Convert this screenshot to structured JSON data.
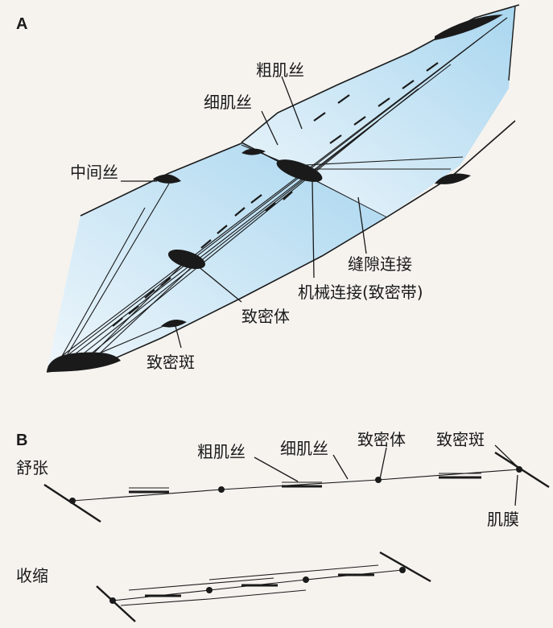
{
  "panel_a": {
    "letter": "A",
    "labels": {
      "thick_filament": "粗肌丝",
      "thin_filament": "细肌丝",
      "intermediate_filament": "中间丝",
      "gap_junction": "缝隙连接",
      "mechanical_junction": "机械连接(致密带)",
      "dense_body": "致密体",
      "dense_patch": "致密斑"
    }
  },
  "panel_b": {
    "letter": "B",
    "relaxed_label": "舒张",
    "contracted_label": "收缩",
    "labels": {
      "thick_filament": "粗肌丝",
      "thin_filament": "细肌丝",
      "dense_body": "致密体",
      "dense_patch": "致密斑",
      "sarcolemma": "肌膜"
    }
  },
  "colors": {
    "cell_fill": "#bfe0f2",
    "ink": "#1a1a1a"
  }
}
